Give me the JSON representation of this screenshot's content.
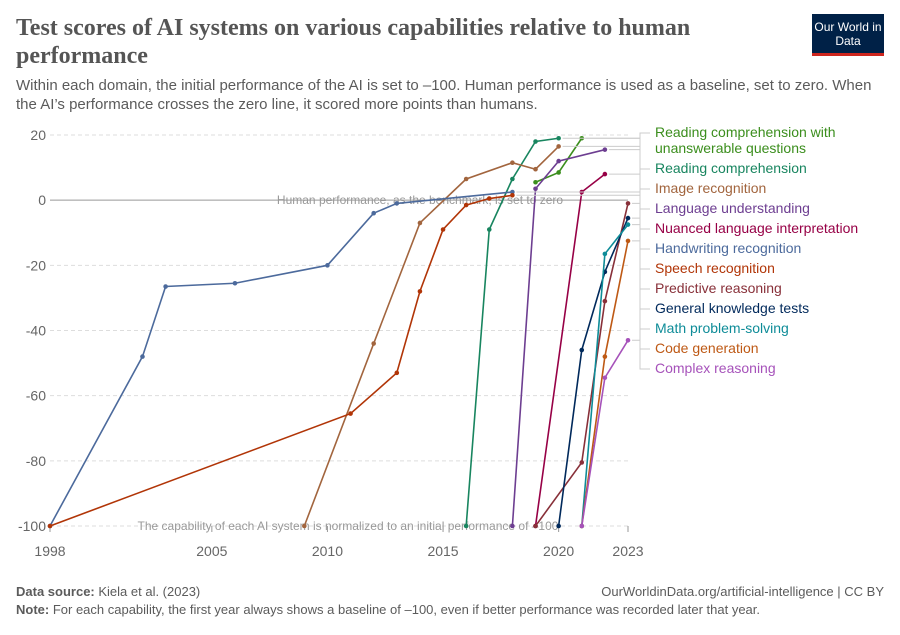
{
  "title": "Test scores of AI systems on various capabilities relative to human performance",
  "subtitle": "Within each domain, the initial performance of the AI is set to –100. Human performance is used as a baseline, set to zero. When the AI’s performance crosses the zero line, it scored more points than humans.",
  "logo": "Our World in Data",
  "footer": {
    "source_label": "Data source:",
    "source": " Kiela et al. (2023)",
    "url": "OurWorldinData.org/artificial-intelligence | CC BY",
    "note_label": "Note:",
    "note": " For each capability, the first year always shows a baseline of –100, even if better performance was recorded later that year."
  },
  "chart_data": {
    "type": "line",
    "xlim": [
      1998,
      2023
    ],
    "ylim": [
      -100,
      20
    ],
    "x_ticks": [
      1998,
      2005,
      2010,
      2015,
      2020,
      2023
    ],
    "y_ticks": [
      -100,
      -80,
      -60,
      -40,
      -20,
      0,
      20
    ],
    "grid": "horizontal dashed",
    "legend": "right, line-end labels",
    "annotations": [
      "Human performance, as the benchmark, is set to zero",
      "The capability of each AI system is normalized to an initial performance of –100"
    ],
    "series": [
      {
        "name": "Reading comprehension with unanswerable questions",
        "color": "#3b8e1d",
        "points": [
          [
            2019,
            5.5
          ],
          [
            2020,
            8.5
          ],
          [
            2021,
            19
          ]
        ]
      },
      {
        "name": "Reading comprehension",
        "color": "#18855f",
        "points": [
          [
            2016,
            -100
          ],
          [
            2017,
            -9
          ],
          [
            2018,
            6.5
          ],
          [
            2019,
            18
          ],
          [
            2020,
            19
          ]
        ]
      },
      {
        "name": "Image recognition",
        "color": "#a2653e",
        "points": [
          [
            2009,
            -100
          ],
          [
            2012,
            -44
          ],
          [
            2014,
            -7
          ],
          [
            2016,
            6.5
          ],
          [
            2018,
            11.5
          ],
          [
            2019,
            9.5
          ],
          [
            2020,
            16.5
          ]
        ]
      },
      {
        "name": "Language understanding",
        "color": "#6d3e91",
        "points": [
          [
            2018,
            -100
          ],
          [
            2019,
            3.5
          ],
          [
            2020,
            12
          ],
          [
            2022,
            15.5
          ]
        ]
      },
      {
        "name": "Nuanced language interpretation",
        "color": "#970046",
        "points": [
          [
            2019,
            -100
          ],
          [
            2021,
            2.5
          ],
          [
            2022,
            8
          ]
        ]
      },
      {
        "name": "Handwriting recognition",
        "color": "#4c6a9c",
        "points": [
          [
            1998,
            -100
          ],
          [
            2002,
            -48
          ],
          [
            2003,
            -26.5
          ],
          [
            2006,
            -25.5
          ],
          [
            2010,
            -20
          ],
          [
            2012,
            -4
          ],
          [
            2013,
            -1
          ],
          [
            2018,
            2.5
          ]
        ]
      },
      {
        "name": "Speech recognition",
        "color": "#b13507",
        "points": [
          [
            1998,
            -100
          ],
          [
            2011,
            -65.5
          ],
          [
            2013,
            -53
          ],
          [
            2014,
            -28
          ],
          [
            2015,
            -9
          ],
          [
            2016,
            -1.5
          ],
          [
            2017,
            0.5
          ],
          [
            2018,
            1.5
          ]
        ]
      },
      {
        "name": "Predictive reasoning",
        "color": "#883039",
        "points": [
          [
            2019,
            -100
          ],
          [
            2021,
            -80.5
          ],
          [
            2022,
            -31
          ],
          [
            2023,
            -1
          ]
        ]
      },
      {
        "name": "General knowledge tests",
        "color": "#00295b",
        "points": [
          [
            2020,
            -100
          ],
          [
            2021,
            -46
          ],
          [
            2022,
            -22
          ],
          [
            2023,
            -5.5
          ]
        ]
      },
      {
        "name": "Math problem-solving",
        "color": "#0e8c98",
        "points": [
          [
            2021,
            -100
          ],
          [
            2022,
            -16.5
          ],
          [
            2023,
            -7.5
          ]
        ]
      },
      {
        "name": "Code generation",
        "color": "#be5915",
        "points": [
          [
            2021,
            -100
          ],
          [
            2022,
            -48
          ],
          [
            2023,
            -12.5
          ]
        ]
      },
      {
        "name": "Complex reasoning",
        "color": "#a652ba",
        "points": [
          [
            2021,
            -100
          ],
          [
            2022,
            -54.5
          ],
          [
            2023,
            -43
          ]
        ]
      }
    ]
  }
}
